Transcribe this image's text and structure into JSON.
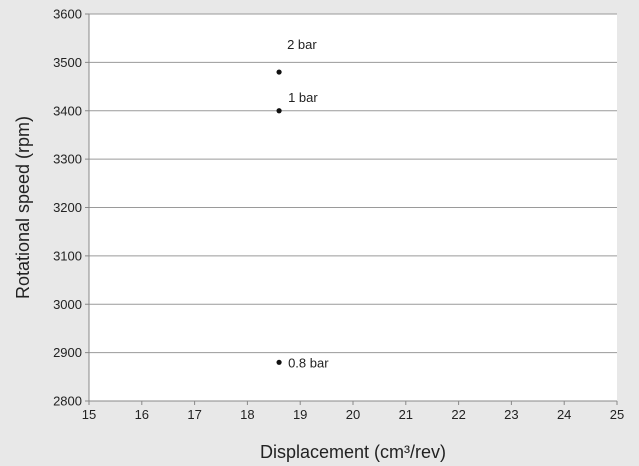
{
  "chart_data": {
    "type": "scatter",
    "title": "",
    "xlabel": "Displacement (cm³/rev)",
    "ylabel": "Rotational speed (rpm)",
    "xlim": [
      15,
      25
    ],
    "ylim": [
      2800,
      3600
    ],
    "x_ticks": [
      15,
      16,
      17,
      18,
      19,
      20,
      21,
      22,
      23,
      24,
      25
    ],
    "y_ticks": [
      2800,
      2900,
      3000,
      3100,
      3200,
      3300,
      3400,
      3500,
      3600
    ],
    "grid": "horizontal",
    "legend": "none",
    "points": [
      {
        "x": 18.6,
        "y": 3480,
        "label": "2 bar"
      },
      {
        "x": 18.6,
        "y": 3400,
        "label": "1 bar"
      },
      {
        "x": 18.6,
        "y": 2880,
        "label": "0.8 bar"
      }
    ],
    "colors": {
      "background": "#e8e8e8",
      "plot_area": "#ffffff",
      "grid": "#9a9a9a",
      "marker": "#111111"
    }
  }
}
